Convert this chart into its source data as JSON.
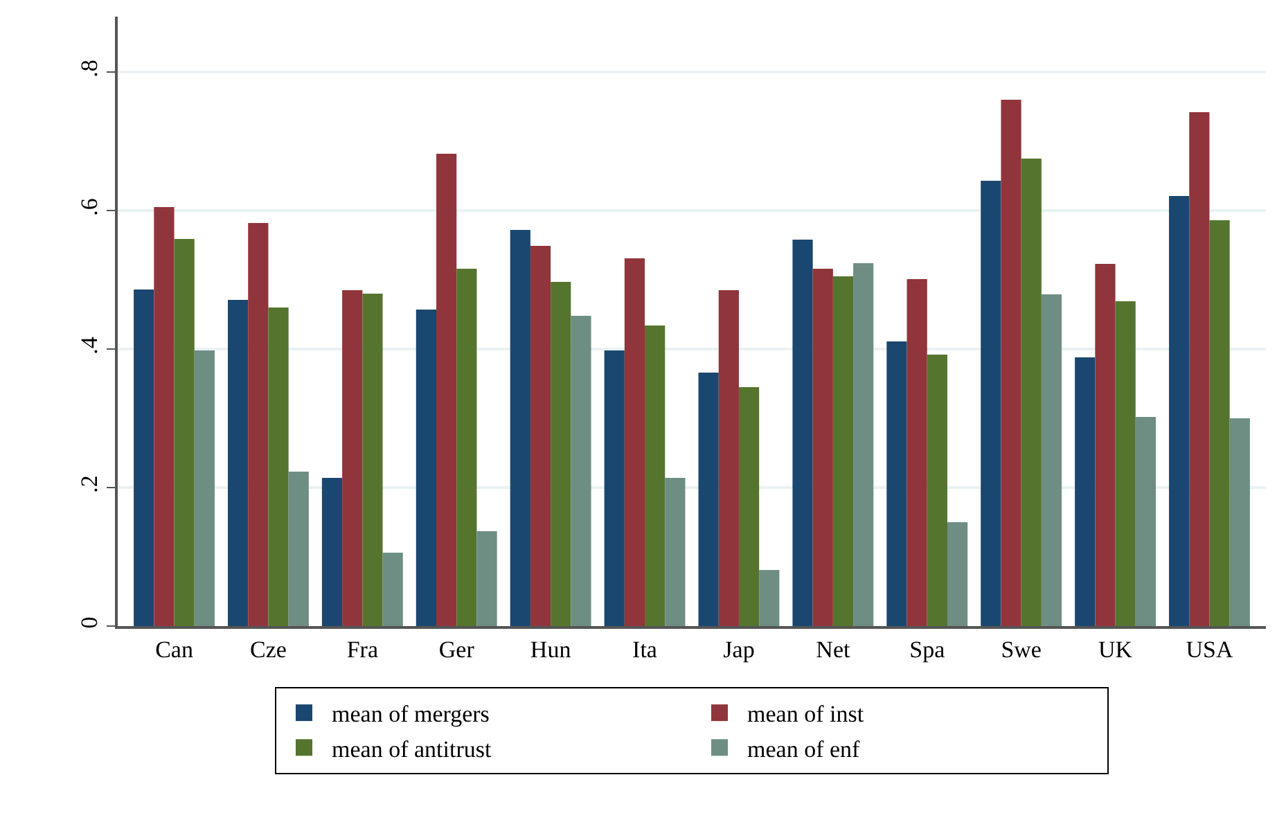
{
  "chart_data": {
    "type": "bar",
    "categories": [
      "Can",
      "Cze",
      "Fra",
      "Ger",
      "Hun",
      "Ita",
      "Jap",
      "Net",
      "Spa",
      "Swe",
      "UK",
      "USA"
    ],
    "series": [
      {
        "name": "mean of mergers",
        "color": "#1a476f",
        "values": [
          0.486,
          0.471,
          0.214,
          0.457,
          0.572,
          0.398,
          0.366,
          0.558,
          0.411,
          0.643,
          0.388,
          0.621
        ]
      },
      {
        "name": "mean of inst",
        "color": "#90353b",
        "values": [
          0.605,
          0.582,
          0.485,
          0.682,
          0.549,
          0.531,
          0.485,
          0.516,
          0.501,
          0.76,
          0.523,
          0.742
        ]
      },
      {
        "name": "mean of antitrust",
        "color": "#55752f",
        "values": [
          0.559,
          0.46,
          0.48,
          0.516,
          0.497,
          0.434,
          0.345,
          0.505,
          0.392,
          0.675,
          0.469,
          0.586
        ]
      },
      {
        "name": "mean of enf",
        "color": "#6e8e84",
        "values": [
          0.398,
          0.223,
          0.106,
          0.137,
          0.448,
          0.214,
          0.081,
          0.524,
          0.15,
          0.479,
          0.302,
          0.3
        ]
      }
    ],
    "ylim": [
      0,
      0.88
    ],
    "yticks": [
      0,
      {
        "value": 0.2,
        "label": ".2"
      },
      {
        "value": 0.4,
        "label": ".4"
      },
      {
        "value": 0.6,
        "label": ".6"
      },
      {
        "value": 0.8,
        "label": ".8"
      }
    ],
    "grid": "y",
    "legend": "bottom"
  }
}
